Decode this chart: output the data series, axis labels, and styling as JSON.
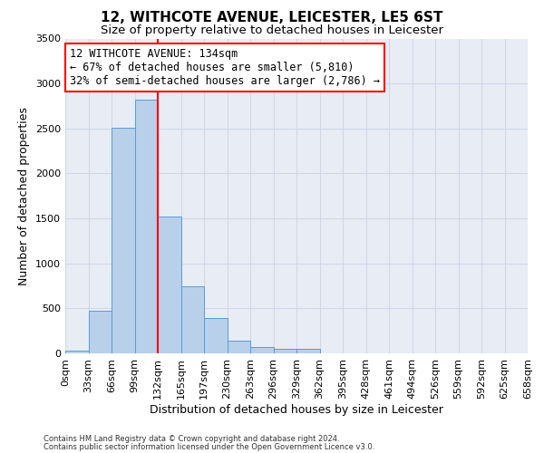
{
  "title1": "12, WITHCOTE AVENUE, LEICESTER, LE5 6ST",
  "title2": "Size of property relative to detached houses in Leicester",
  "xlabel": "Distribution of detached houses by size in Leicester",
  "ylabel": "Number of detached properties",
  "footnote1": "Contains HM Land Registry data © Crown copyright and database right 2024.",
  "footnote2": "Contains public sector information licensed under the Open Government Licence v3.0.",
  "bin_labels": [
    "0sqm",
    "33sqm",
    "66sqm",
    "99sqm",
    "132sqm",
    "165sqm",
    "197sqm",
    "230sqm",
    "263sqm",
    "296sqm",
    "329sqm",
    "362sqm",
    "395sqm",
    "428sqm",
    "461sqm",
    "494sqm",
    "526sqm",
    "559sqm",
    "592sqm",
    "625sqm",
    "658sqm"
  ],
  "bar_values": [
    30,
    470,
    2510,
    2820,
    1520,
    745,
    390,
    145,
    70,
    55,
    55,
    0,
    0,
    0,
    0,
    0,
    0,
    0,
    0,
    0
  ],
  "bar_color": "#b8d0ea",
  "bar_edge_color": "#5b9bd5",
  "background_color": "#e8edf5",
  "vline_x": 4.0,
  "vline_color": "red",
  "annotation_line1": "12 WITHCOTE AVENUE: 134sqm",
  "annotation_line2": "← 67% of detached houses are smaller (5,810)",
  "annotation_line3": "32% of semi-detached houses are larger (2,786) →",
  "annotation_box_color": "white",
  "annotation_box_edgecolor": "red",
  "ylim": [
    0,
    3500
  ],
  "yticks": [
    0,
    500,
    1000,
    1500,
    2000,
    2500,
    3000,
    3500
  ],
  "grid_color": "#d0d8e8",
  "title1_fontsize": 11,
  "title2_fontsize": 9.5,
  "xlabel_fontsize": 9,
  "ylabel_fontsize": 9,
  "annotation_fontsize": 8.5,
  "tick_fontsize": 8,
  "footnote_fontsize": 6
}
